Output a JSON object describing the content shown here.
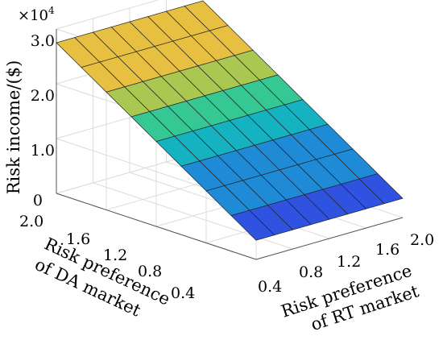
{
  "chart_data": {
    "type": "surface",
    "title": "",
    "x_axis": {
      "label_lines": [
        "Risk preference",
        "of DA market"
      ],
      "ticks": [
        "2.0",
        "1.6",
        "1.2",
        "0.8",
        "0.4"
      ],
      "range": [
        0.4,
        2.0
      ]
    },
    "y_axis": {
      "label_lines": [
        "Risk preference",
        "of RT market"
      ],
      "ticks": [
        "0.4",
        "0.8",
        "1.2",
        "1.6",
        "2.0"
      ],
      "range": [
        0.4,
        2.0
      ]
    },
    "z_axis": {
      "label": "Risk income/($)",
      "ticks": [
        "0",
        "1.0",
        "2.0",
        "3.0"
      ],
      "multiplier": "×10",
      "multiplier_exponent": "4",
      "range": [
        0,
        3.0
      ]
    },
    "grid": true,
    "colormap": [
      "#3b2a9c",
      "#2f52e0",
      "#1f8ad6",
      "#15b3c2",
      "#35c794",
      "#a9c751",
      "#e7c041",
      "#fcc419"
    ],
    "surface": {
      "note_rows": "rows follow DA preference from 0.4 (front) to 2.0 (back); value is independent of RT preference",
      "da_values": [
        0.4,
        0.6,
        0.8,
        1.0,
        1.2,
        1.4,
        1.6,
        1.8,
        2.0
      ],
      "rt_values": [
        0.4,
        0.6,
        0.8,
        1.0,
        1.2,
        1.4,
        1.6,
        1.8,
        2.0
      ],
      "income_1e4": [
        0.35,
        0.65,
        0.95,
        1.25,
        1.55,
        1.85,
        2.15,
        2.45,
        2.75
      ]
    }
  }
}
